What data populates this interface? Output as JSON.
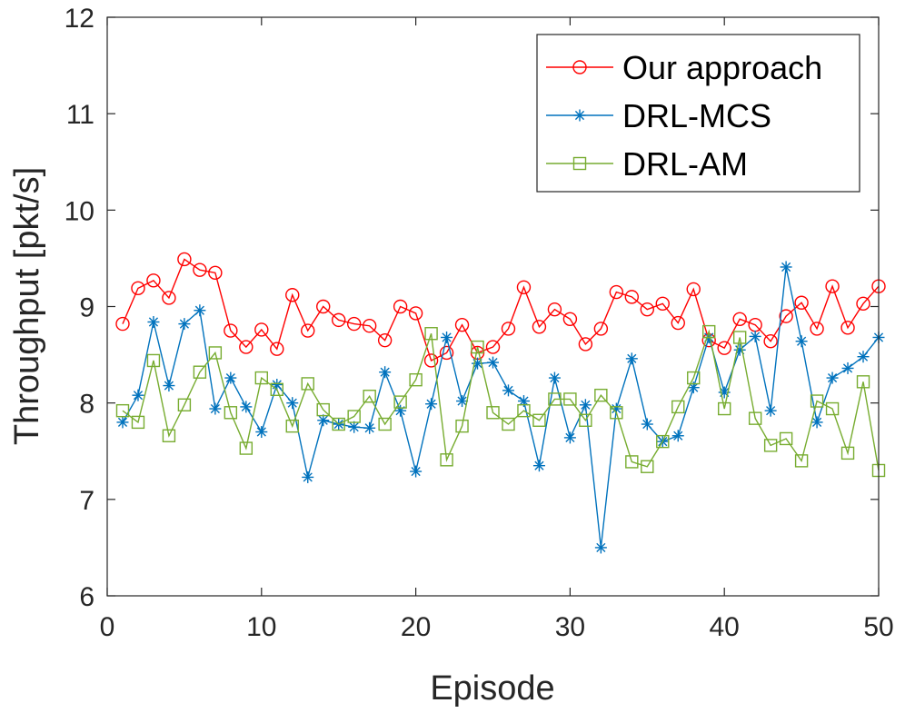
{
  "chart_data": {
    "type": "line",
    "title": "",
    "xlabel": "Episode",
    "ylabel": "Throughput [pkt/s]",
    "xlim": [
      0,
      50
    ],
    "ylim": [
      6,
      12
    ],
    "xticks": [
      0,
      10,
      20,
      30,
      40,
      50
    ],
    "yticks": [
      6,
      7,
      8,
      9,
      10,
      11,
      12
    ],
    "grid": false,
    "legend_position": "top-right",
    "x": [
      1,
      2,
      3,
      4,
      5,
      6,
      7,
      8,
      9,
      10,
      11,
      12,
      13,
      14,
      15,
      16,
      17,
      18,
      19,
      20,
      21,
      22,
      23,
      24,
      25,
      26,
      27,
      28,
      29,
      30,
      31,
      32,
      33,
      34,
      35,
      36,
      37,
      38,
      39,
      40,
      41,
      42,
      43,
      44,
      45,
      46,
      47,
      48,
      49,
      50
    ],
    "series": [
      {
        "name": "Our approach",
        "color": "#ff0000",
        "marker": "circle",
        "values": [
          8.82,
          9.19,
          9.27,
          9.09,
          9.49,
          9.38,
          9.35,
          8.75,
          8.58,
          8.76,
          8.56,
          9.12,
          8.75,
          9.0,
          8.86,
          8.82,
          8.8,
          8.65,
          9.0,
          8.93,
          8.44,
          8.52,
          8.81,
          8.52,
          8.58,
          8.77,
          9.2,
          8.79,
          8.97,
          8.87,
          8.61,
          8.77,
          9.15,
          9.1,
          8.97,
          9.03,
          8.83,
          9.18,
          8.65,
          8.57,
          8.87,
          8.81,
          8.64,
          8.9,
          9.04,
          8.77,
          9.21,
          8.78,
          9.03,
          9.21
        ]
      },
      {
        "name": "DRL-MCS",
        "color": "#0072bd",
        "marker": "asterisk",
        "values": [
          7.8,
          8.08,
          8.84,
          8.18,
          8.82,
          8.96,
          7.94,
          8.26,
          7.96,
          7.7,
          8.19,
          8.0,
          7.23,
          7.82,
          7.78,
          7.75,
          7.74,
          8.32,
          7.92,
          7.29,
          7.99,
          8.68,
          8.02,
          8.41,
          8.42,
          8.13,
          8.02,
          7.35,
          8.26,
          7.64,
          7.98,
          6.5,
          7.94,
          8.46,
          7.78,
          7.6,
          7.66,
          8.16,
          8.68,
          8.11,
          8.55,
          8.69,
          7.92,
          9.41,
          8.64,
          7.8,
          8.26,
          8.36,
          8.48,
          8.68
        ]
      },
      {
        "name": "DRL-AM",
        "color": "#77ac30",
        "marker": "square",
        "values": [
          7.92,
          7.8,
          8.44,
          7.66,
          7.98,
          8.32,
          8.52,
          7.9,
          7.53,
          8.26,
          8.14,
          7.76,
          8.2,
          7.93,
          7.78,
          7.86,
          8.07,
          7.78,
          8.01,
          8.24,
          8.72,
          7.41,
          7.76,
          8.58,
          7.9,
          7.78,
          7.92,
          7.82,
          8.04,
          8.04,
          7.82,
          8.08,
          7.9,
          7.39,
          7.34,
          7.6,
          7.96,
          8.26,
          8.74,
          7.94,
          8.68,
          7.84,
          7.56,
          7.63,
          7.4,
          8.02,
          7.94,
          7.48,
          8.22,
          7.3
        ]
      }
    ]
  }
}
